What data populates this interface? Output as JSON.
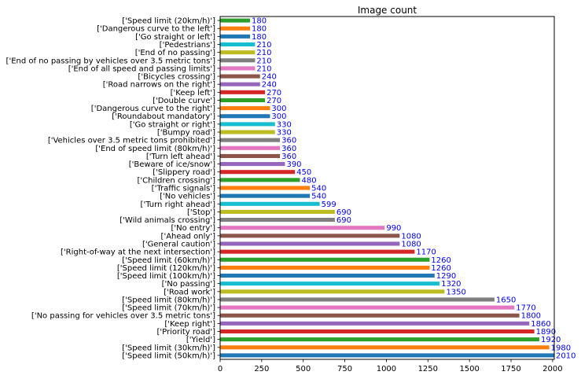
{
  "chart_data": {
    "type": "bar",
    "orientation": "horizontal",
    "title": "Image count",
    "xlabel": "",
    "ylabel": "",
    "xlim": [
      0,
      2010
    ],
    "xticks": [
      0,
      250,
      500,
      750,
      1000,
      1250,
      1500,
      1750,
      2000
    ],
    "grid": false,
    "value_label_color": "#0000ff",
    "bar_colors": [
      "#1f77b4",
      "#ff7f0e",
      "#2ca02c",
      "#d62728",
      "#9467bd",
      "#8c564b",
      "#e377c2",
      "#7f7f7f",
      "#bcbd22",
      "#17becf"
    ],
    "categories": [
      "['Speed limit (50km/h)']",
      "['Speed limit (30km/h)']",
      "['Yield']",
      "['Priority road']",
      "['Keep right']",
      "['No passing for vehicles over 3.5 metric tons']",
      "['Speed limit (70km/h)']",
      "['Speed limit (80km/h)']",
      "['Road work']",
      "['No passing']",
      "['Speed limit (100km/h)']",
      "['Speed limit (120km/h)']",
      "['Speed limit (60km/h)']",
      "['Right-of-way at the next intersection']",
      "['General caution']",
      "['Ahead only']",
      "['No entry']",
      "['Wild animals crossing']",
      "['Stop']",
      "['Turn right ahead']",
      "['No vehicles']",
      "['Traffic signals']",
      "['Children crossing']",
      "['Slippery road']",
      "['Beware of ice/snow']",
      "['Turn left ahead']",
      "['End of speed limit (80km/h)']",
      "['Vehicles over 3.5 metric tons prohibited']",
      "['Bumpy road']",
      "['Go straight or right']",
      "['Roundabout mandatory']",
      "['Dangerous curve to the right']",
      "['Double curve']",
      "['Keep left']",
      "['Road narrows on the right']",
      "['Bicycles crossing']",
      "['End of all speed and passing limits']",
      "['End of no passing by vehicles over 3.5 metric tons']",
      "['End of no passing']",
      "['Pedestrians']",
      "['Go straight or left']",
      "['Dangerous curve to the left']",
      "['Speed limit (20km/h)']"
    ],
    "values": [
      2010,
      1980,
      1920,
      1890,
      1860,
      1800,
      1770,
      1650,
      1350,
      1320,
      1290,
      1260,
      1260,
      1170,
      1080,
      1080,
      990,
      690,
      690,
      599,
      540,
      540,
      480,
      450,
      390,
      360,
      360,
      360,
      330,
      330,
      300,
      300,
      270,
      270,
      240,
      240,
      210,
      210,
      210,
      210,
      180,
      180,
      180
    ]
  }
}
